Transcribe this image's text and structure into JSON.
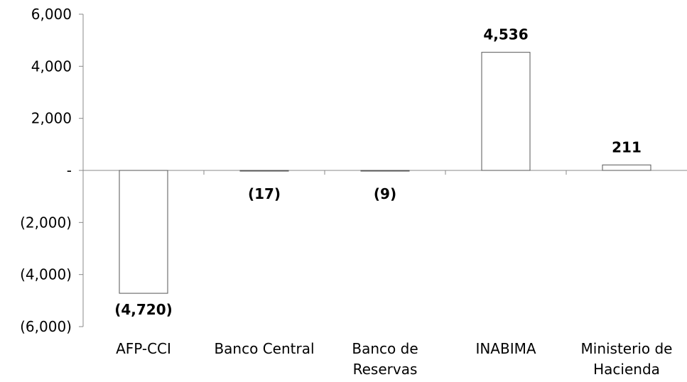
{
  "chart_data": {
    "type": "bar",
    "categories": [
      [
        "AFP-CCI"
      ],
      [
        "Banco Central"
      ],
      [
        "Banco de",
        "Reservas"
      ],
      [
        "INABIMA"
      ],
      [
        "Ministerio de",
        "Hacienda"
      ]
    ],
    "values": [
      -4720,
      -17,
      -9,
      4536,
      211
    ],
    "data_labels": [
      "(4,720)",
      "(17)",
      "(9)",
      "4,536",
      "211"
    ],
    "y_ticks": [
      {
        "value": 6000,
        "label": "6,000"
      },
      {
        "value": 4000,
        "label": "4,000"
      },
      {
        "value": 2000,
        "label": "2,000"
      },
      {
        "value": 0,
        "label": "-"
      },
      {
        "value": -2000,
        "label": "(2,000)"
      },
      {
        "value": -4000,
        "label": "(4,000)"
      },
      {
        "value": -6000,
        "label": "(6,000)"
      }
    ],
    "ylim": [
      -6000,
      6000
    ],
    "grid": false,
    "bar_fill": "#ffffff",
    "bar_stroke": "#555555",
    "axis_color": "#888888"
  }
}
